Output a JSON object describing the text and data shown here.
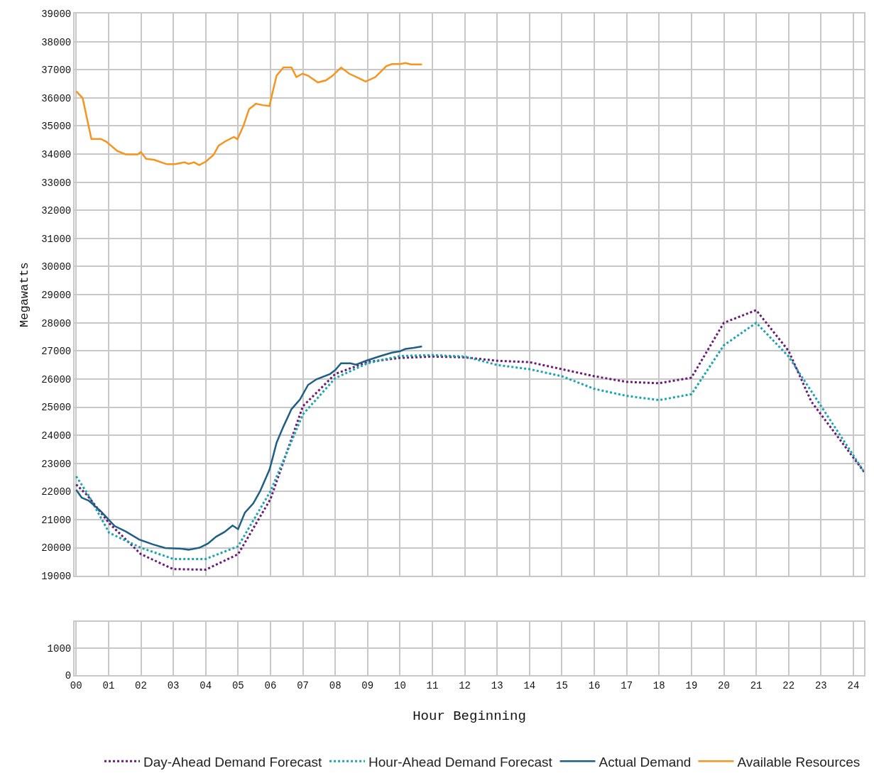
{
  "chart_data": [
    {
      "type": "line",
      "ylabel": "Megawatts",
      "xlim": [
        -0.05,
        24.33
      ],
      "xticks": [
        {
          "value": 0,
          "label": null
        },
        {
          "value": 1,
          "label": null
        },
        {
          "value": 2,
          "label": null
        },
        {
          "value": 3,
          "label": null
        },
        {
          "value": 4,
          "label": null
        },
        {
          "value": 5,
          "label": null
        },
        {
          "value": 6,
          "label": null
        },
        {
          "value": 7,
          "label": null
        },
        {
          "value": 8,
          "label": null
        },
        {
          "value": 9,
          "label": null
        },
        {
          "value": 10,
          "label": null
        },
        {
          "value": 11,
          "label": null
        },
        {
          "value": 12,
          "label": null
        },
        {
          "value": 13,
          "label": null
        },
        {
          "value": 14,
          "label": null
        },
        {
          "value": 15,
          "label": null
        },
        {
          "value": 16,
          "label": null
        },
        {
          "value": 17,
          "label": null
        },
        {
          "value": 18,
          "label": null
        },
        {
          "value": 19,
          "label": null
        },
        {
          "value": 20,
          "label": null
        },
        {
          "value": 21,
          "label": null
        },
        {
          "value": 22,
          "label": null
        },
        {
          "value": 23,
          "label": null
        },
        {
          "value": 24,
          "label": null
        }
      ],
      "ylim": [
        19000,
        39000
      ],
      "yticks": [
        19000,
        20000,
        21000,
        22000,
        23000,
        24000,
        25000,
        26000,
        27000,
        28000,
        29000,
        30000,
        31000,
        32000,
        33000,
        34000,
        35000,
        36000,
        37000,
        38000,
        39000
      ],
      "tick_labels": "y",
      "grid": true,
      "legend": "bottom",
      "marker": "none",
      "series": [
        {
          "name": "Day-Ahead Demand Forecast",
          "color": "#6a1b7a",
          "line_style": "dotted",
          "x": [
            0,
            0.34,
            1.02,
            2,
            3,
            4,
            5,
            6,
            7,
            8,
            9,
            10,
            11,
            12,
            13,
            14,
            15,
            16,
            17,
            18,
            19,
            20,
            21,
            22,
            22.7,
            24.33
          ],
          "values": [
            22250,
            21870,
            20870,
            19770,
            19240,
            19220,
            19770,
            21730,
            25030,
            26180,
            26610,
            26750,
            26800,
            26770,
            26650,
            26600,
            26350,
            26100,
            25900,
            25850,
            26050,
            28000,
            28450,
            27000,
            25200,
            22700
          ]
        },
        {
          "name": "Hour-Ahead Demand Forecast",
          "color": "#1aa5b0",
          "line_style": "dotted",
          "x": [
            0,
            0.38,
            1.02,
            2,
            3,
            4,
            5,
            6,
            7,
            8,
            9,
            10,
            11,
            12,
            13,
            14,
            15,
            16,
            17,
            18,
            19,
            20,
            21,
            22,
            24.33
          ],
          "values": [
            22540,
            21870,
            20530,
            20000,
            19600,
            19600,
            20050,
            22010,
            24740,
            26030,
            26560,
            26820,
            26850,
            26800,
            26500,
            26350,
            26100,
            25650,
            25400,
            25250,
            25460,
            27200,
            28000,
            26800,
            22700
          ]
        },
        {
          "name": "Actual Demand",
          "color": "#1f5f86",
          "line_style": "solid",
          "x": [
            0,
            0.17,
            0.38,
            0.76,
            1.19,
            1.53,
            1.95,
            2.37,
            2.75,
            3.3,
            3.47,
            3.81,
            4.07,
            4.32,
            4.58,
            4.83,
            5.0,
            5.21,
            5.47,
            5.68,
            5.97,
            6.06,
            6.19,
            6.4,
            6.65,
            6.91,
            7.16,
            7.42,
            7.84,
            8.0,
            8.18,
            8.47,
            8.64,
            8.98,
            9.4,
            9.75,
            10.0,
            10.17,
            10.42,
            10.68
          ],
          "values": [
            22060,
            21780,
            21680,
            21300,
            20770,
            20580,
            20290,
            20120,
            19990,
            19960,
            19930,
            20000,
            20150,
            20390,
            20560,
            20790,
            20660,
            21250,
            21580,
            22010,
            22780,
            23160,
            23740,
            24310,
            24930,
            25270,
            25790,
            25990,
            26180,
            26320,
            26560,
            26560,
            26510,
            26660,
            26820,
            26940,
            26990,
            27070,
            27110,
            27160
          ]
        },
        {
          "name": "Available Resources",
          "color": "#f7941d",
          "line_style": "solid",
          "x": [
            0,
            0.2,
            0.47,
            0.76,
            0.93,
            1.27,
            1.53,
            1.9,
            2.0,
            2.16,
            2.4,
            2.8,
            3.05,
            3.35,
            3.47,
            3.64,
            3.8,
            4.0,
            4.24,
            4.4,
            4.6,
            4.87,
            4.98,
            5.17,
            5.34,
            5.55,
            5.76,
            5.97,
            6.06,
            6.19,
            6.4,
            6.65,
            6.8,
            6.99,
            7.16,
            7.46,
            7.71,
            7.92,
            8.18,
            8.43,
            8.73,
            8.94,
            9.24,
            9.58,
            9.75,
            10.0,
            10.17,
            10.34,
            10.68
          ],
          "values": [
            36230,
            35990,
            34540,
            34540,
            34440,
            34110,
            33990,
            33990,
            34070,
            33830,
            33800,
            33640,
            33640,
            33710,
            33650,
            33710,
            33610,
            33730,
            33970,
            34300,
            34450,
            34610,
            34530,
            35020,
            35600,
            35790,
            35740,
            35710,
            36170,
            36790,
            37080,
            37080,
            36740,
            36860,
            36790,
            36550,
            36620,
            36790,
            37080,
            36860,
            36700,
            36580,
            36740,
            37130,
            37200,
            37200,
            37240,
            37190,
            37190
          ]
        }
      ]
    },
    {
      "type": "line",
      "xlabel": "Hour Beginning",
      "xlim": [
        -0.05,
        24.33
      ],
      "xticks": [
        {
          "value": 0,
          "label": "00"
        },
        {
          "value": 1,
          "label": "01"
        },
        {
          "value": 2,
          "label": "02"
        },
        {
          "value": 3,
          "label": "03"
        },
        {
          "value": 4,
          "label": "04"
        },
        {
          "value": 5,
          "label": "05"
        },
        {
          "value": 6,
          "label": "06"
        },
        {
          "value": 7,
          "label": "07"
        },
        {
          "value": 8,
          "label": "08"
        },
        {
          "value": 9,
          "label": "09"
        },
        {
          "value": 10,
          "label": "10"
        },
        {
          "value": 11,
          "label": "11"
        },
        {
          "value": 12,
          "label": "12"
        },
        {
          "value": 13,
          "label": "13"
        },
        {
          "value": 14,
          "label": "14"
        },
        {
          "value": 15,
          "label": "15"
        },
        {
          "value": 16,
          "label": "16"
        },
        {
          "value": 17,
          "label": "17"
        },
        {
          "value": 18,
          "label": "18"
        },
        {
          "value": 19,
          "label": "19"
        },
        {
          "value": 20,
          "label": "20"
        },
        {
          "value": 21,
          "label": "21"
        },
        {
          "value": 22,
          "label": "22"
        },
        {
          "value": 23,
          "label": "23"
        },
        {
          "value": 24,
          "label": "24"
        }
      ],
      "ylim": [
        0,
        1950
      ],
      "yticks": [
        0,
        1000
      ],
      "grid": true
    }
  ]
}
